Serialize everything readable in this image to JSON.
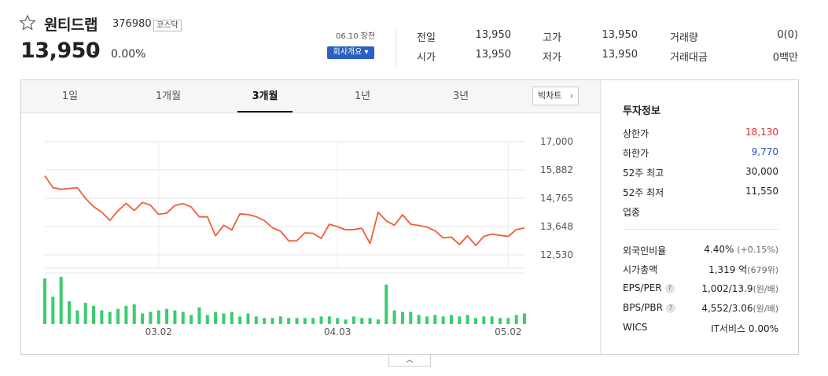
{
  "stock": {
    "name": "원티드랩",
    "code": "376980",
    "market": "코스닥",
    "price": "13,950",
    "change_sign": "–",
    "change_pct": "0.00%"
  },
  "session": {
    "date_label": "06.10 장전",
    "company_button": "회사개요 ▾"
  },
  "quote": {
    "prev_close_label": "전일",
    "prev_close": "13,950",
    "open_label": "시가",
    "open": "13,950",
    "high_label": "고가",
    "high": "13,950",
    "low_label": "저가",
    "low": "13,950",
    "volume_label": "거래량",
    "volume": "0(0)",
    "amount_label": "거래대금",
    "amount": "0백만"
  },
  "tabs": [
    "1일",
    "1개월",
    "3개월",
    "1년",
    "3년"
  ],
  "active_tab": "3개월",
  "bigchart_label": "빅차트",
  "colors": {
    "line": "#f25c3a",
    "bar": "#3ccc6e",
    "up": "#e0262f",
    "down": "#2a4fc4"
  },
  "chart_data": {
    "type": "line",
    "y_ticks": [
      "17,000",
      "15,882",
      "14,765",
      "13,648",
      "12,530"
    ],
    "x_ticks": [
      "03.02",
      "04.03",
      "05.02"
    ],
    "ylim": [
      12530,
      17000
    ],
    "values": [
      15650,
      15180,
      15120,
      15150,
      15180,
      14760,
      14430,
      14220,
      13890,
      14270,
      14560,
      14280,
      14600,
      14490,
      14130,
      14180,
      14480,
      14550,
      14420,
      14030,
      14030,
      13280,
      13700,
      13510,
      14150,
      14120,
      14040,
      13880,
      13600,
      13460,
      13080,
      13090,
      13400,
      13380,
      13180,
      13740,
      13640,
      13520,
      13530,
      13580,
      12980,
      14210,
      13870,
      13700,
      14110,
      13740,
      13690,
      13630,
      13480,
      13200,
      13230,
      12940,
      13280,
      12900,
      13260,
      13350,
      13300,
      13260,
      13530,
      13590
    ],
    "volume": [
      30,
      18,
      31,
      15,
      9,
      14,
      12,
      9,
      8,
      10,
      12,
      13,
      7,
      8,
      9,
      10,
      9,
      8,
      6,
      11,
      6,
      8,
      7,
      8,
      5,
      7,
      5,
      4,
      4,
      5,
      4,
      4,
      4,
      4,
      5,
      5,
      4,
      3,
      5,
      4,
      4,
      3,
      26,
      9,
      8,
      8,
      6,
      5,
      6,
      5,
      6,
      5,
      6,
      4,
      5,
      5,
      4,
      4,
      6,
      7
    ]
  },
  "invest": {
    "title": "투자정보",
    "upper_limit_label": "상한가",
    "upper_limit": "18,130",
    "lower_limit_label": "하한가",
    "lower_limit": "9,770",
    "w52_high_label": "52주 최고",
    "w52_high": "30,000",
    "w52_low_label": "52주 최저",
    "w52_low": "11,550",
    "sector_label": "업종",
    "foreign_label": "외국인비율",
    "foreign": "4.40%",
    "foreign_sub": "(+0.15%)",
    "mcap_label": "시가총액",
    "mcap": "1,319 억",
    "mcap_sub": "(679위)",
    "eps_label": "EPS/PER",
    "eps": "1,002/13.9",
    "eps_sub": "(원/배)",
    "bps_label": "BPS/PBR",
    "bps": "4,552/3.06",
    "bps_sub": "(원/배)",
    "wics_label": "WICS",
    "wics": "IT서비스 0.00%"
  },
  "collapse_icon": "chevron-up-icon"
}
